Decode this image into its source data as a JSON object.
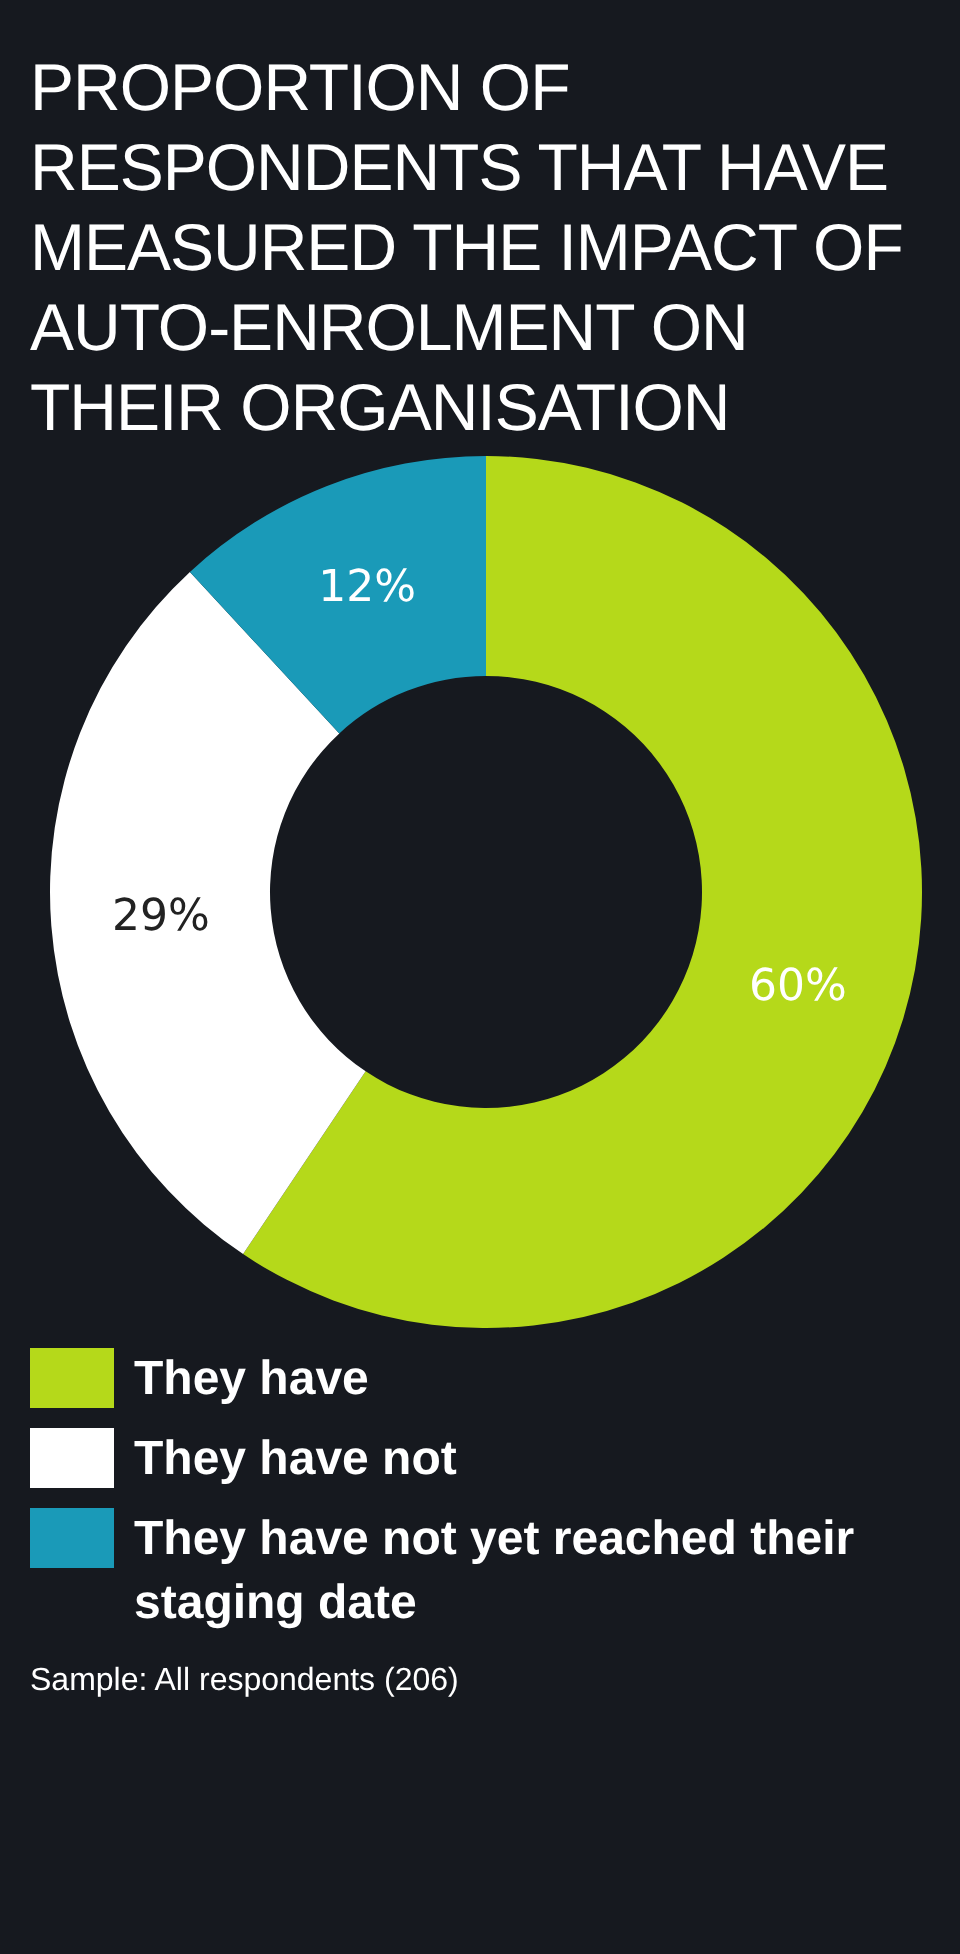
{
  "chart_data": {
    "type": "donut",
    "title": "PROPORTION OF RESPONDENTS THAT HAVE MEASURED THE IMPACT OF AUTO-ENROLMENT ON THEIR ORGANISATION",
    "categories": [
      "They have",
      "They have not",
      "They have not yet reached their staging date"
    ],
    "values": [
      60,
      29,
      12
    ],
    "value_labels": [
      "60%",
      "29%",
      "12%"
    ],
    "colors": [
      "#b5d91a",
      "#ffffff",
      "#1a9ab8"
    ],
    "legend": "bottom",
    "annotations": [
      "Sample: All respondents (206)"
    ]
  }
}
